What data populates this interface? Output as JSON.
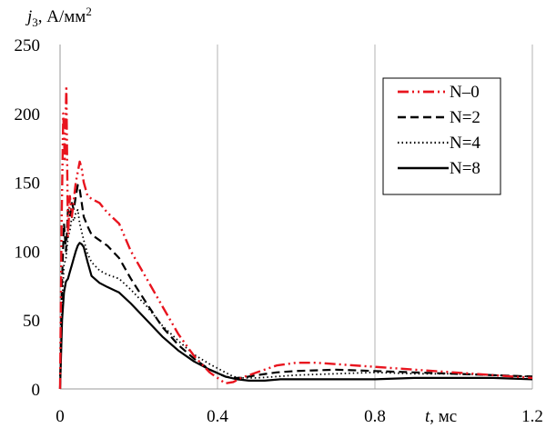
{
  "chart_data": {
    "type": "line",
    "ylabel_var": "j",
    "ylabel_sub": "3",
    "ylabel_units": ", А/мм",
    "ylabel_sup": "2",
    "xlabel_var": "t",
    "xlabel_units": ", мс",
    "xlim": [
      0,
      1.2
    ],
    "ylim": [
      0,
      250
    ],
    "xticks": [
      0,
      0.4,
      0.8,
      1.2
    ],
    "xtick_labels": [
      "0",
      "0.4",
      "0.8",
      "1.2"
    ],
    "yticks": [
      0,
      50,
      100,
      150,
      200,
      250
    ],
    "ytick_labels": [
      "0",
      "50",
      "100",
      "150",
      "200",
      "250"
    ],
    "grid": "vertical",
    "legend_position": "top-right",
    "series": [
      {
        "name": "N–0",
        "color": "#e8141e",
        "style": "dashdotdot",
        "x": [
          0,
          0.004,
          0.008,
          0.012,
          0.016,
          0.02,
          0.025,
          0.03,
          0.04,
          0.05,
          0.055,
          0.06,
          0.07,
          0.08,
          0.1,
          0.12,
          0.15,
          0.18,
          0.22,
          0.26,
          0.3,
          0.34,
          0.38,
          0.42,
          0.44,
          0.46,
          0.5,
          0.55,
          0.6,
          0.65,
          0.7,
          0.8,
          0.9,
          1.0,
          1.1,
          1.2
        ],
        "y": [
          0,
          120,
          200,
          165,
          220,
          110,
          140,
          125,
          150,
          165,
          160,
          150,
          140,
          138,
          135,
          128,
          120,
          100,
          80,
          60,
          40,
          24,
          12,
          4,
          5,
          8,
          12,
          17,
          19,
          19,
          18,
          16,
          14,
          12,
          10,
          8
        ]
      },
      {
        "name": "N=2",
        "color": "#000000",
        "style": "dashed",
        "x": [
          0,
          0.005,
          0.01,
          0.015,
          0.02,
          0.025,
          0.03,
          0.035,
          0.04,
          0.045,
          0.05,
          0.055,
          0.06,
          0.07,
          0.08,
          0.1,
          0.12,
          0.15,
          0.18,
          0.22,
          0.26,
          0.3,
          0.34,
          0.38,
          0.42,
          0.44,
          0.46,
          0.5,
          0.55,
          0.6,
          0.7,
          0.8,
          0.9,
          1.0,
          1.1,
          1.2
        ],
        "y": [
          0,
          80,
          120,
          100,
          130,
          125,
          135,
          130,
          140,
          148,
          145,
          135,
          125,
          118,
          112,
          108,
          104,
          95,
          80,
          62,
          45,
          32,
          22,
          14,
          9,
          8,
          8,
          10,
          12,
          13,
          14,
          13,
          12,
          11,
          10,
          9
        ]
      },
      {
        "name": "N=4",
        "color": "#000000",
        "style": "dotted",
        "x": [
          0,
          0.005,
          0.01,
          0.015,
          0.02,
          0.025,
          0.03,
          0.035,
          0.04,
          0.045,
          0.05,
          0.06,
          0.07,
          0.08,
          0.1,
          0.12,
          0.15,
          0.18,
          0.22,
          0.26,
          0.3,
          0.34,
          0.38,
          0.42,
          0.44,
          0.46,
          0.5,
          0.55,
          0.6,
          0.7,
          0.8,
          0.9,
          1.0,
          1.1,
          1.2
        ],
        "y": [
          0,
          60,
          90,
          95,
          110,
          115,
          125,
          122,
          128,
          130,
          120,
          108,
          98,
          92,
          86,
          83,
          80,
          72,
          60,
          46,
          35,
          25,
          18,
          12,
          9,
          8,
          8,
          9,
          10,
          11,
          12,
          11,
          11,
          10,
          9
        ]
      },
      {
        "name": "N=8",
        "color": "#000000",
        "style": "solid",
        "x": [
          0,
          0.005,
          0.01,
          0.015,
          0.02,
          0.025,
          0.03,
          0.035,
          0.04,
          0.045,
          0.05,
          0.055,
          0.06,
          0.07,
          0.08,
          0.1,
          0.12,
          0.15,
          0.18,
          0.22,
          0.26,
          0.3,
          0.34,
          0.38,
          0.42,
          0.45,
          0.48,
          0.52,
          0.56,
          0.6,
          0.7,
          0.8,
          0.9,
          1.0,
          1.1,
          1.2
        ],
        "y": [
          0,
          50,
          70,
          78,
          80,
          85,
          90,
          95,
          100,
          104,
          106,
          105,
          103,
          92,
          82,
          77,
          74,
          70,
          62,
          50,
          38,
          28,
          20,
          14,
          9,
          7,
          6,
          6,
          7,
          7,
          7,
          7,
          8,
          8,
          8,
          7
        ]
      }
    ]
  }
}
